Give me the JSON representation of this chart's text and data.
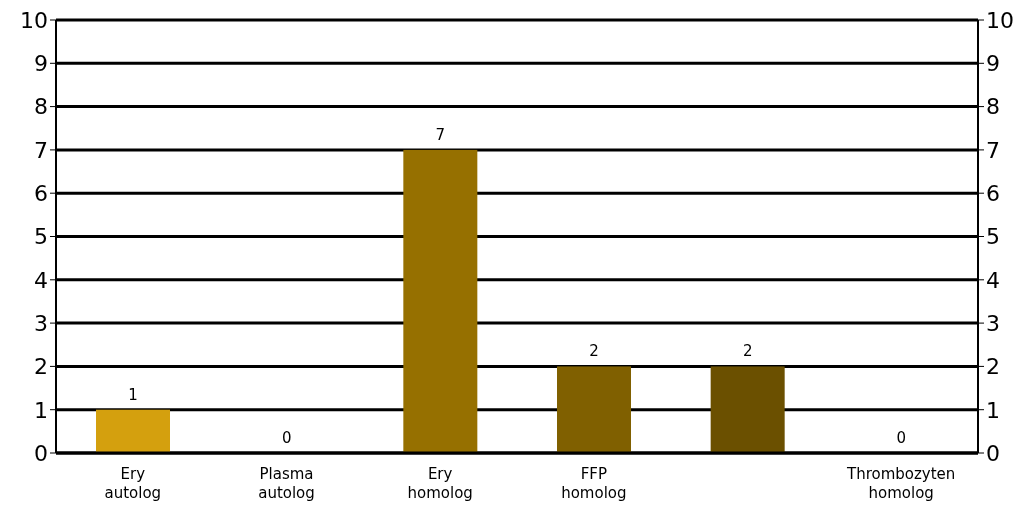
{
  "chart_data": {
    "type": "bar",
    "categories": [
      "Ery autolog",
      "Plasma autolog",
      "Ery homolog",
      "FFP homolog",
      null,
      "Thrombozyten homolog"
    ],
    "values": [
      1,
      0,
      7,
      2,
      2,
      0
    ],
    "colors": [
      "#d4a00e",
      "#c5960f",
      "#967000",
      "#806000",
      "#6b5000",
      "#5a3f00"
    ],
    "ylim": [
      0,
      10
    ],
    "yticks": [
      0,
      1,
      2,
      3,
      4,
      5,
      6,
      7,
      8,
      9,
      10
    ],
    "y2lim": [
      0,
      10
    ],
    "y2ticks": [
      0,
      1,
      2,
      3,
      4,
      5,
      6,
      7,
      8,
      9,
      10
    ],
    "grid": "y",
    "data_labels": true
  }
}
